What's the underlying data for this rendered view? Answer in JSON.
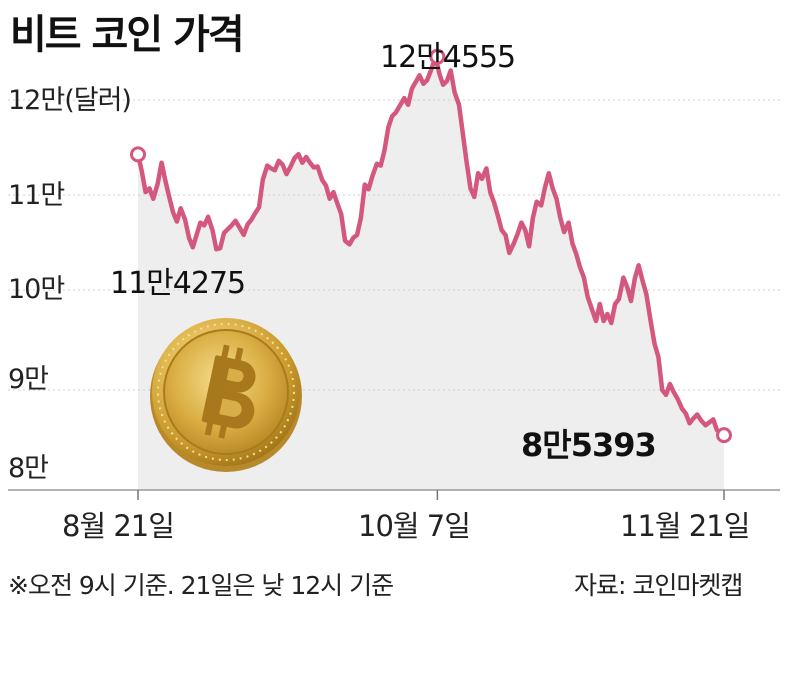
{
  "title": "비트 코인 가격",
  "footnote": "※오전 9시 기준. 21일은 낮 12시 기준",
  "source": "자료: 코인마켓캡",
  "chart_data": {
    "type": "area",
    "title": "비트 코인 가격",
    "ylabel": "(달러)",
    "ylim": [
      80000,
      120000
    ],
    "yticks": [
      {
        "value": 120000,
        "label": "12만(달러)"
      },
      {
        "value": 110000,
        "label": "11만"
      },
      {
        "value": 100000,
        "label": "10만"
      },
      {
        "value": 90000,
        "label": "9만"
      },
      {
        "value": 80000,
        "label": "8만"
      }
    ],
    "xticks": [
      {
        "day": 0,
        "label": "8월 21일"
      },
      {
        "day": 47,
        "label": "10월 7일"
      },
      {
        "day": 92,
        "label": "11월 21일"
      }
    ],
    "line_color": "#d4587e",
    "area_color": "#eeeeee",
    "annotations": [
      {
        "day": 0,
        "value": 114275,
        "label": "11만4275",
        "bold": false
      },
      {
        "day": 47,
        "value": 124555,
        "label": "12만4555",
        "bold": false
      },
      {
        "day": 92,
        "value": 85393,
        "label": "8만5393",
        "bold": true
      }
    ],
    "series": [
      {
        "values": [
          [
            0,
            114275
          ],
          [
            0.6,
            112500
          ],
          [
            1.2,
            110300
          ],
          [
            1.8,
            110700
          ],
          [
            2.4,
            109600
          ],
          [
            3.1,
            111200
          ],
          [
            3.7,
            113400
          ],
          [
            4.3,
            111500
          ],
          [
            4.9,
            109800
          ],
          [
            5.5,
            108200
          ],
          [
            6.1,
            107200
          ],
          [
            6.7,
            108600
          ],
          [
            7.4,
            107400
          ],
          [
            8.0,
            105500
          ],
          [
            8.6,
            104500
          ],
          [
            9.2,
            105800
          ],
          [
            9.8,
            107100
          ],
          [
            10.4,
            106800
          ],
          [
            11.0,
            107700
          ],
          [
            11.7,
            106300
          ],
          [
            12.3,
            104300
          ],
          [
            12.9,
            104400
          ],
          [
            13.5,
            106000
          ],
          [
            14.1,
            106400
          ],
          [
            14.7,
            106800
          ],
          [
            15.3,
            107300
          ],
          [
            16.0,
            106500
          ],
          [
            16.6,
            105800
          ],
          [
            17.2,
            106900
          ],
          [
            17.8,
            107400
          ],
          [
            18.4,
            108100
          ],
          [
            19.0,
            108700
          ],
          [
            19.6,
            111600
          ],
          [
            20.3,
            113100
          ],
          [
            20.9,
            112800
          ],
          [
            21.5,
            112600
          ],
          [
            22.1,
            113600
          ],
          [
            22.7,
            113200
          ],
          [
            23.3,
            112200
          ],
          [
            23.9,
            112900
          ],
          [
            24.6,
            113900
          ],
          [
            25.2,
            114300
          ],
          [
            25.8,
            113400
          ],
          [
            26.4,
            114000
          ],
          [
            27.0,
            113400
          ],
          [
            27.6,
            112900
          ],
          [
            28.2,
            113000
          ],
          [
            28.9,
            111600
          ],
          [
            29.5,
            111000
          ],
          [
            30.1,
            109600
          ],
          [
            30.7,
            110300
          ],
          [
            31.3,
            109100
          ],
          [
            31.9,
            108000
          ],
          [
            32.5,
            105200
          ],
          [
            33.2,
            104800
          ],
          [
            33.8,
            105500
          ],
          [
            34.4,
            105800
          ],
          [
            35.0,
            107600
          ],
          [
            35.6,
            111100
          ],
          [
            36.2,
            110600
          ],
          [
            36.8,
            112000
          ],
          [
            37.5,
            113300
          ],
          [
            38.1,
            113100
          ],
          [
            38.7,
            114700
          ],
          [
            39.3,
            117100
          ],
          [
            39.9,
            118300
          ],
          [
            40.5,
            118700
          ],
          [
            41.1,
            119400
          ],
          [
            41.8,
            120200
          ],
          [
            42.4,
            119500
          ],
          [
            43.0,
            121200
          ],
          [
            43.6,
            121900
          ],
          [
            44.2,
            122600
          ],
          [
            44.8,
            121700
          ],
          [
            45.4,
            122100
          ],
          [
            46.1,
            123300
          ],
          [
            46.7,
            124555
          ],
          [
            47.3,
            122800
          ],
          [
            47.9,
            121600
          ],
          [
            48.5,
            122000
          ],
          [
            49.1,
            123100
          ],
          [
            49.7,
            120800
          ],
          [
            50.4,
            119500
          ],
          [
            51.0,
            116500
          ],
          [
            51.6,
            113400
          ],
          [
            52.2,
            110700
          ],
          [
            52.8,
            109800
          ],
          [
            53.4,
            112300
          ],
          [
            54.0,
            111700
          ],
          [
            54.7,
            112800
          ],
          [
            55.3,
            110300
          ],
          [
            55.9,
            109200
          ],
          [
            56.5,
            107800
          ],
          [
            57.1,
            106300
          ],
          [
            57.7,
            105800
          ],
          [
            58.3,
            103900
          ],
          [
            59.0,
            104900
          ],
          [
            59.6,
            105900
          ],
          [
            60.2,
            107100
          ],
          [
            60.8,
            106300
          ],
          [
            61.4,
            104600
          ],
          [
            62.0,
            107600
          ],
          [
            62.6,
            109300
          ],
          [
            63.3,
            108900
          ],
          [
            63.9,
            110800
          ],
          [
            64.5,
            112300
          ],
          [
            65.1,
            110700
          ],
          [
            65.7,
            109600
          ],
          [
            66.3,
            107600
          ],
          [
            66.9,
            106100
          ],
          [
            67.6,
            107100
          ],
          [
            68.2,
            104900
          ],
          [
            68.8,
            103800
          ],
          [
            69.4,
            102400
          ],
          [
            70.0,
            101300
          ],
          [
            70.6,
            99300
          ],
          [
            71.2,
            98200
          ],
          [
            71.9,
            96900
          ],
          [
            72.5,
            98600
          ],
          [
            73.1,
            96900
          ],
          [
            73.7,
            97600
          ],
          [
            74.3,
            96700
          ],
          [
            74.9,
            98600
          ],
          [
            75.5,
            99100
          ],
          [
            76.2,
            101300
          ],
          [
            76.8,
            100300
          ],
          [
            77.4,
            98900
          ],
          [
            78.0,
            101200
          ],
          [
            78.6,
            102600
          ],
          [
            79.2,
            101000
          ],
          [
            79.8,
            99600
          ],
          [
            80.5,
            96800
          ],
          [
            81.1,
            94600
          ],
          [
            81.7,
            93300
          ],
          [
            82.3,
            90000
          ],
          [
            82.9,
            89500
          ],
          [
            83.5,
            90600
          ],
          [
            84.1,
            89800
          ],
          [
            84.8,
            89000
          ],
          [
            85.4,
            88100
          ],
          [
            86.0,
            87600
          ],
          [
            86.6,
            86600
          ],
          [
            87.2,
            87100
          ],
          [
            87.8,
            87500
          ],
          [
            88.4,
            86900
          ],
          [
            89.1,
            86400
          ],
          [
            89.7,
            86700
          ],
          [
            90.3,
            87000
          ],
          [
            90.9,
            85900
          ],
          [
            91.5,
            85700
          ],
          [
            92.0,
            85393
          ]
        ]
      }
    ]
  }
}
